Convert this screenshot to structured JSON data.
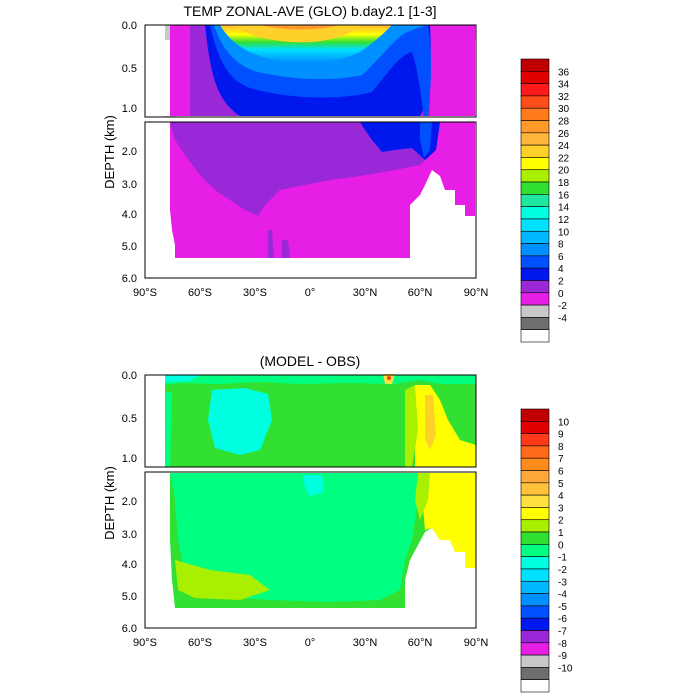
{
  "chart_data": [
    {
      "type": "heatmap",
      "title": "TEMP ZONAL-AVE (GLO) b.day2.1 [1-3]",
      "ylabel": "DEPTH (km)",
      "xlabel": "",
      "x_ticks": [
        "90°S",
        "60°S",
        "30°S",
        "0°",
        "30°N",
        "60°N",
        "90°N"
      ],
      "x_range": [
        -90,
        90
      ],
      "upper_y_ticks": [
        "0.0",
        "0.5",
        "1.0"
      ],
      "upper_y_range": [
        0,
        1.2
      ],
      "lower_y_ticks": [
        "2.0",
        "3.0",
        "4.0",
        "5.0",
        "6.0"
      ],
      "lower_y_range": [
        1.2,
        6.0
      ],
      "colorbar_labels": [
        "36",
        "34",
        "32",
        "30",
        "28",
        "26",
        "24",
        "22",
        "20",
        "18",
        "16",
        "14",
        "12",
        "10",
        "8",
        "6",
        "4",
        "2",
        "0",
        "-2",
        "-4"
      ],
      "colorbar_colors": [
        "#c00000",
        "#e00000",
        "#ff1a1a",
        "#ff4d1a",
        "#ff7a1a",
        "#ff9a2a",
        "#ffb63a",
        "#ffd02a",
        "#ffff00",
        "#a8f000",
        "#32e032",
        "#20e6a0",
        "#00ffe0",
        "#00e0ff",
        "#00b8ff",
        "#0090ff",
        "#0050ff",
        "#0018ee",
        "#9a28d8",
        "#e61ee6",
        "#c8c8c8",
        "#6e6e6e",
        "#ffffff"
      ]
    },
    {
      "type": "heatmap",
      "title": "(MODEL - OBS)",
      "ylabel": "DEPTH (km)",
      "xlabel": "",
      "x_ticks": [
        "90°S",
        "60°S",
        "30°S",
        "0°",
        "30°N",
        "60°N",
        "90°N"
      ],
      "x_range": [
        -90,
        90
      ],
      "upper_y_ticks": [
        "0.0",
        "0.5",
        "1.0"
      ],
      "upper_y_range": [
        0,
        1.2
      ],
      "lower_y_ticks": [
        "2.0",
        "3.0",
        "4.0",
        "5.0",
        "6.0"
      ],
      "lower_y_range": [
        1.2,
        6.0
      ],
      "colorbar_labels": [
        "10",
        "9",
        "8",
        "7",
        "6",
        "5",
        "4",
        "3",
        "2",
        "1",
        "0",
        "-1",
        "-2",
        "-3",
        "-4",
        "-5",
        "-6",
        "-7",
        "-8",
        "-9",
        "-10"
      ],
      "colorbar_colors": [
        "#c00000",
        "#e00000",
        "#ff3a1a",
        "#ff6a1a",
        "#ff8c1a",
        "#ffa83a",
        "#ffc23a",
        "#ffe040",
        "#ffff00",
        "#a8f000",
        "#32e032",
        "#00ff80",
        "#00ffe0",
        "#00e0ff",
        "#00b8ff",
        "#0090ff",
        "#0050ff",
        "#0018ee",
        "#9a28d8",
        "#e61ee6",
        "#c8c8c8",
        "#6e6e6e",
        "#ffffff"
      ]
    }
  ]
}
